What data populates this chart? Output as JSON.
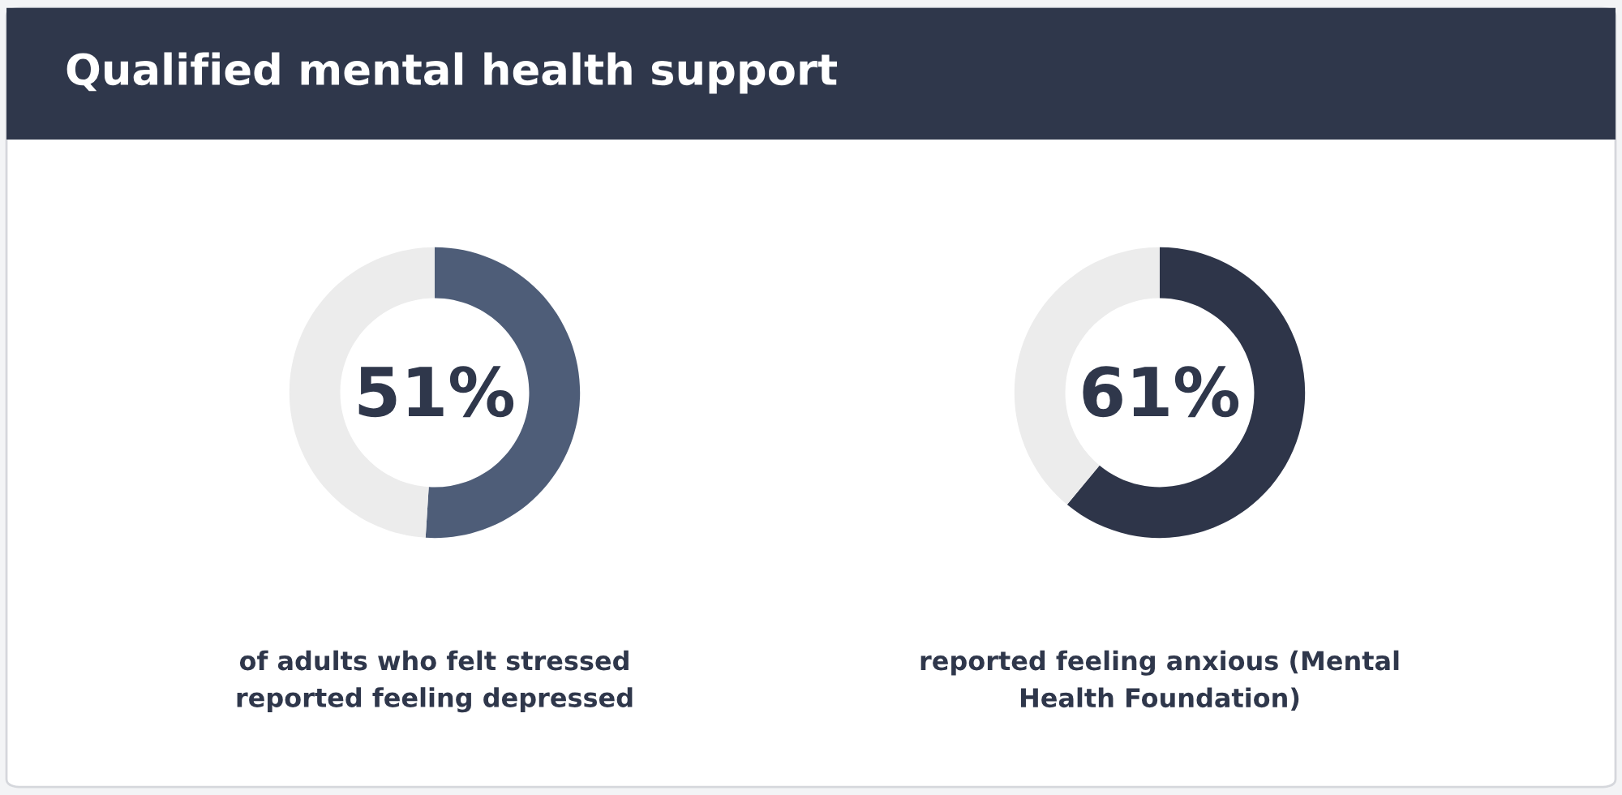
{
  "chart_data": [
    {
      "type": "donut",
      "title": "Qualified mental health support",
      "categories": [
        null,
        null
      ],
      "values": [
        51,
        49
      ],
      "colors": [
        "#4e5d78",
        "#ececec"
      ],
      "annotations": [
        "51%",
        "of adults who felt stressed\nreported feeling depressed"
      ]
    },
    {
      "type": "donut",
      "categories": [
        null,
        null
      ],
      "values": [
        61,
        39
      ],
      "colors": [
        "#2e3549",
        "#ececec"
      ],
      "annotations": [
        "61%",
        "reported feeling anxious (Mental\nHealth Foundation)"
      ]
    }
  ]
}
